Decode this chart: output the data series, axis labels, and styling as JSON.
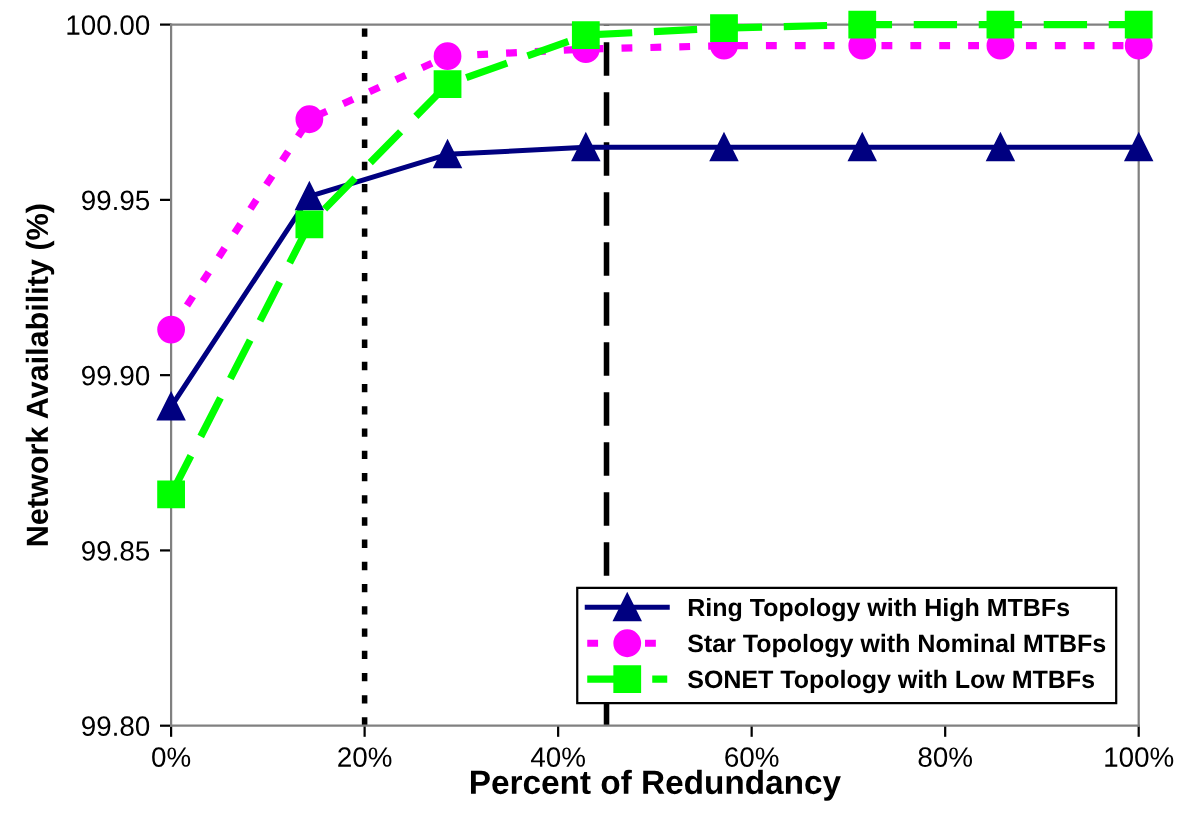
{
  "chart_data": {
    "type": "line",
    "xlabel": "Percent of Redundancy",
    "ylabel": "Network Availability (%)",
    "x": [
      0,
      14.29,
      28.57,
      42.86,
      57.14,
      71.43,
      85.71,
      100
    ],
    "series": [
      {
        "name": "Ring Topology with High MTBFs",
        "color": "#000080",
        "marker": "triangle",
        "line_style": "solid",
        "values": [
          99.891,
          99.951,
          99.963,
          99.965,
          99.965,
          99.965,
          99.965,
          99.965
        ]
      },
      {
        "name": "Star Topology with Nominal MTBFs",
        "color": "#ff00ff",
        "marker": "circle",
        "line_style": "dotted",
        "values": [
          99.913,
          99.973,
          99.991,
          99.993,
          99.994,
          99.994,
          99.994,
          99.994
        ]
      },
      {
        "name": "SONET Topology with Low MTBFs",
        "color": "#00ff00",
        "marker": "square",
        "line_style": "dashed",
        "values": [
          99.866,
          99.943,
          99.983,
          99.997,
          99.999,
          100.0,
          100.0,
          100.0
        ]
      }
    ],
    "xlim": [
      0,
      100
    ],
    "xticks": [
      {
        "value": 0,
        "label": "0%"
      },
      {
        "value": 20,
        "label": "20%"
      },
      {
        "value": 40,
        "label": "40%"
      },
      {
        "value": 60,
        "label": "60%"
      },
      {
        "value": 80,
        "label": "80%"
      },
      {
        "value": 100,
        "label": "100%"
      }
    ],
    "ylim": [
      99.8,
      100.0
    ],
    "yticks": [
      {
        "value": 99.8,
        "label": "99.80"
      },
      {
        "value": 99.85,
        "label": "99.85"
      },
      {
        "value": 99.9,
        "label": "99.90"
      },
      {
        "value": 99.95,
        "label": "99.95"
      },
      {
        "value": 100.0,
        "label": "100.00"
      }
    ],
    "ref_lines": [
      {
        "axis": "x",
        "value": 20,
        "color": "#000000",
        "line_style": "dotted"
      },
      {
        "axis": "x",
        "value": 45,
        "color": "#000000",
        "line_style": "dashed"
      }
    ],
    "grid": false,
    "legend": "bottom right"
  }
}
